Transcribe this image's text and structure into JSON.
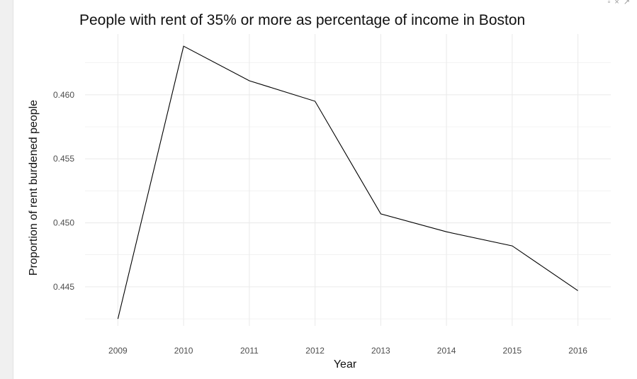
{
  "window": {
    "icons": [
      "minimize-icon",
      "close-icon",
      "expand-icon"
    ]
  },
  "chart_data": {
    "type": "line",
    "title": "People with rent of 35% or more as percentage of income in Boston",
    "xlabel": "Year",
    "ylabel": "Proportion of rent burdened people",
    "x": [
      "2009",
      "2010",
      "2011",
      "2012",
      "2013",
      "2014",
      "2015",
      "2016"
    ],
    "series": [
      {
        "values": [
          0.4425,
          0.4638,
          0.4611,
          0.4595,
          0.4507,
          0.4493,
          0.4482,
          0.4447
        ]
      }
    ],
    "y_ticks": [
      0.445,
      0.45,
      0.455,
      0.46
    ],
    "y_tick_labels": [
      "0.445",
      "0.450",
      "0.455",
      "0.460"
    ],
    "ylim": [
      0.44195,
      0.46475
    ],
    "grid": true,
    "line_color": "#000000",
    "grid_color": "#ebebeb"
  }
}
